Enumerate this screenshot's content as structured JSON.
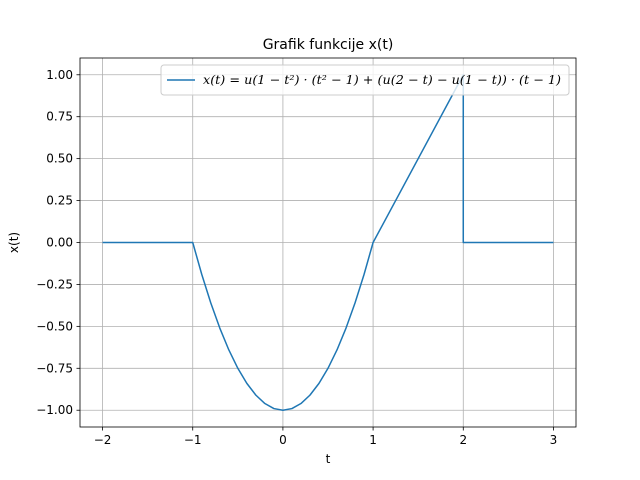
{
  "chart_data": {
    "type": "line",
    "title": "Grafik funkcije x(t)",
    "xlabel": "t",
    "ylabel": "x(t)",
    "xlim": [
      -2.25,
      3.25
    ],
    "ylim": [
      -1.1,
      1.1
    ],
    "xticks": [
      -2,
      -1,
      0,
      1,
      2,
      3
    ],
    "xtick_labels": [
      "−2",
      "−1",
      "0",
      "1",
      "2",
      "3"
    ],
    "yticks": [
      -1.0,
      -0.75,
      -0.5,
      -0.25,
      0.0,
      0.25,
      0.5,
      0.75,
      1.0
    ],
    "ytick_labels": [
      "−1.00",
      "−0.75",
      "−0.50",
      "−0.25",
      "0.00",
      "0.25",
      "0.50",
      "0.75",
      "1.00"
    ],
    "grid": true,
    "legend_position": "top-right",
    "series": [
      {
        "name": "x(t) = u(1 − t²) · (t² − 1) + (u(2 − t) − u(1 − t)) · (t − 1)",
        "color": "#1f77b4",
        "x": [
          -2,
          -1,
          -0.9,
          -0.8,
          -0.7,
          -0.6,
          -0.5,
          -0.4,
          -0.3,
          -0.2,
          -0.1,
          0,
          0.1,
          0.2,
          0.3,
          0.4,
          0.5,
          0.6,
          0.7,
          0.8,
          0.9,
          1,
          2,
          2,
          3
        ],
        "y": [
          0,
          0,
          -0.19,
          -0.36,
          -0.51,
          -0.64,
          -0.75,
          -0.84,
          -0.91,
          -0.96,
          -0.99,
          -1,
          -0.99,
          -0.96,
          -0.91,
          -0.84,
          -0.75,
          -0.64,
          -0.51,
          -0.36,
          -0.19,
          0,
          1,
          0,
          0
        ]
      }
    ]
  }
}
